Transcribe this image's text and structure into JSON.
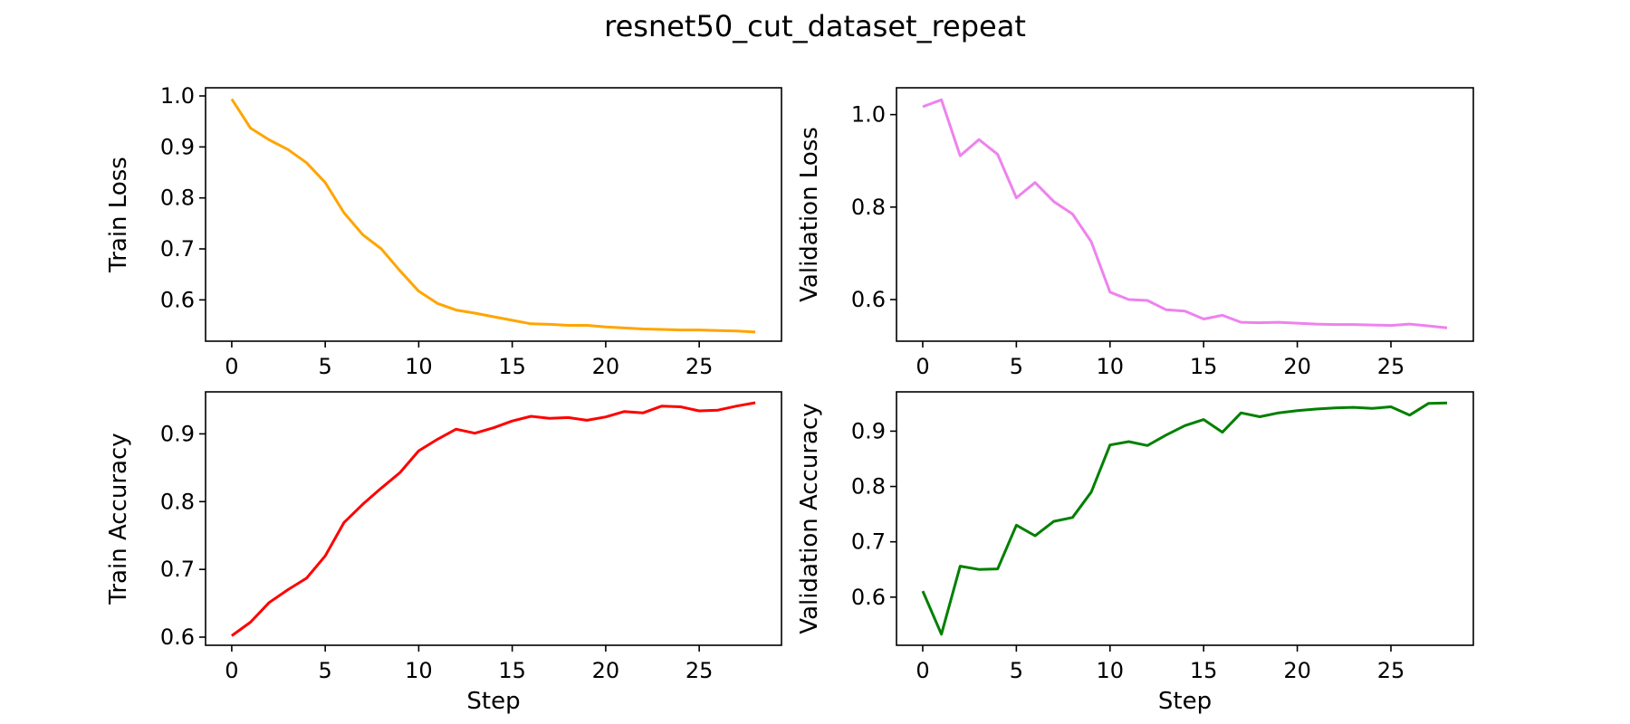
{
  "figure": {
    "title": "resnet50_cut_dataset_repeat"
  },
  "chart_data": [
    {
      "type": "line",
      "ylabel": "Train Loss",
      "xlabel": "",
      "color": "#ffa500",
      "xlim": [
        -1.4,
        29.4
      ],
      "ylim": [
        0.519,
        1.016
      ],
      "xticks": [
        "0",
        "5",
        "10",
        "15",
        "20",
        "25"
      ],
      "yticks": [
        "0.6",
        "0.7",
        "0.8",
        "0.9",
        "1.0"
      ],
      "x": [
        0,
        1,
        2,
        3,
        4,
        5,
        6,
        7,
        8,
        9,
        10,
        11,
        12,
        13,
        14,
        15,
        16,
        17,
        18,
        19,
        20,
        21,
        22,
        23,
        24,
        25,
        26,
        27,
        28
      ],
      "y": [
        0.994,
        0.937,
        0.914,
        0.895,
        0.869,
        0.83,
        0.771,
        0.728,
        0.7,
        0.657,
        0.617,
        0.593,
        0.58,
        0.574,
        0.567,
        0.56,
        0.553,
        0.552,
        0.55,
        0.55,
        0.547,
        0.545,
        0.543,
        0.542,
        0.541,
        0.541,
        0.54,
        0.539,
        0.537
      ]
    },
    {
      "type": "line",
      "ylabel": "Validation Loss",
      "xlabel": "",
      "color": "#ee82ee",
      "xlim": [
        -1.4,
        29.4
      ],
      "ylim": [
        0.51,
        1.058
      ],
      "xticks": [
        "0",
        "5",
        "10",
        "15",
        "20",
        "25"
      ],
      "yticks": [
        "0.6",
        "0.8",
        "1.0"
      ],
      "x": [
        0,
        1,
        2,
        3,
        4,
        5,
        6,
        7,
        8,
        9,
        10,
        11,
        12,
        13,
        14,
        15,
        16,
        17,
        18,
        19,
        20,
        21,
        22,
        23,
        24,
        25,
        26,
        27,
        28
      ],
      "y": [
        1.017,
        1.032,
        0.911,
        0.946,
        0.914,
        0.82,
        0.853,
        0.812,
        0.785,
        0.725,
        0.616,
        0.6,
        0.598,
        0.578,
        0.575,
        0.558,
        0.566,
        0.551,
        0.55,
        0.551,
        0.549,
        0.547,
        0.546,
        0.546,
        0.545,
        0.544,
        0.547,
        0.543,
        0.539
      ]
    },
    {
      "type": "line",
      "ylabel": "Train Accuracy",
      "xlabel": "Step",
      "color": "#ff0000",
      "xlim": [
        -1.4,
        29.4
      ],
      "ylim": [
        0.588,
        0.962
      ],
      "xticks": [
        "0",
        "5",
        "10",
        "15",
        "20",
        "25"
      ],
      "yticks": [
        "0.6",
        "0.7",
        "0.8",
        "0.9"
      ],
      "x": [
        0,
        1,
        2,
        3,
        4,
        5,
        6,
        7,
        8,
        9,
        10,
        11,
        12,
        13,
        14,
        15,
        16,
        17,
        18,
        19,
        20,
        21,
        22,
        23,
        24,
        25,
        26,
        27,
        28
      ],
      "y": [
        0.602,
        0.622,
        0.651,
        0.67,
        0.687,
        0.72,
        0.769,
        0.796,
        0.82,
        0.843,
        0.875,
        0.892,
        0.907,
        0.901,
        0.909,
        0.919,
        0.926,
        0.923,
        0.924,
        0.92,
        0.925,
        0.933,
        0.931,
        0.941,
        0.94,
        0.934,
        0.935,
        0.941,
        0.946
      ]
    },
    {
      "type": "line",
      "ylabel": "Validation Accuracy",
      "xlabel": "Step",
      "color": "#008000",
      "xlim": [
        -1.4,
        29.4
      ],
      "ylim": [
        0.513,
        0.971
      ],
      "xticks": [
        "0",
        "5",
        "10",
        "15",
        "20",
        "25"
      ],
      "yticks": [
        "0.6",
        "0.7",
        "0.8",
        "0.9"
      ],
      "x": [
        0,
        1,
        2,
        3,
        4,
        5,
        6,
        7,
        8,
        9,
        10,
        11,
        12,
        13,
        14,
        15,
        16,
        17,
        18,
        19,
        20,
        21,
        22,
        23,
        24,
        25,
        26,
        27,
        28
      ],
      "y": [
        0.611,
        0.533,
        0.656,
        0.65,
        0.651,
        0.73,
        0.711,
        0.737,
        0.744,
        0.79,
        0.875,
        0.881,
        0.874,
        0.893,
        0.91,
        0.921,
        0.898,
        0.933,
        0.926,
        0.933,
        0.937,
        0.94,
        0.942,
        0.943,
        0.941,
        0.944,
        0.929,
        0.95,
        0.951
      ]
    }
  ]
}
